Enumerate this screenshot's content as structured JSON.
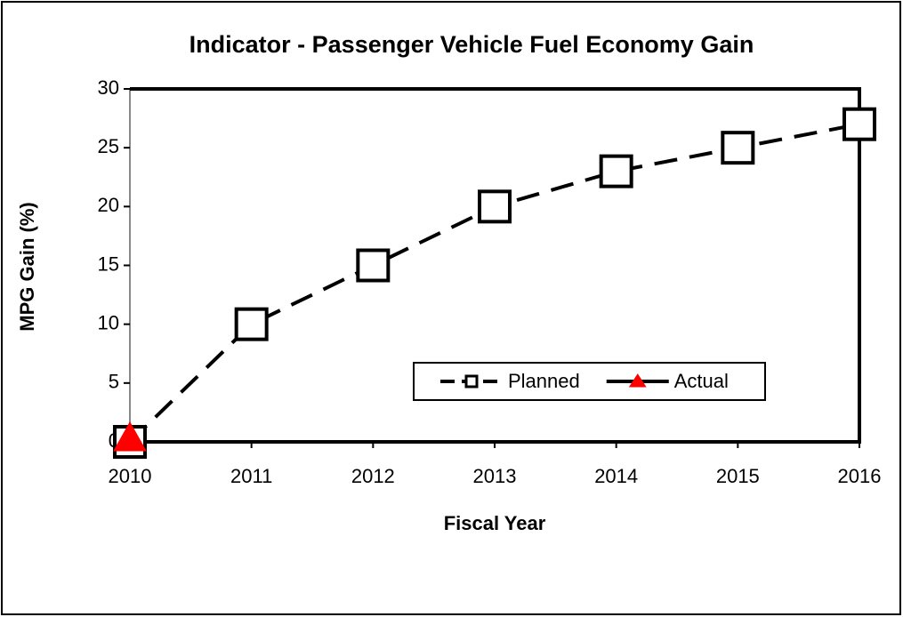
{
  "chart_data": {
    "type": "line",
    "title": "Indicator - Passenger Vehicle Fuel Economy Gain",
    "x_label": "Fiscal Year",
    "y_label": "MPG Gain (%)",
    "x": [
      2010,
      2011,
      2012,
      2013,
      2014,
      2015,
      2016
    ],
    "xlim": [
      2010,
      2016
    ],
    "xticks": [
      2010,
      2011,
      2012,
      2013,
      2014,
      2015,
      2016
    ],
    "ylim": [
      0,
      30
    ],
    "yticks": [
      0,
      5,
      10,
      15,
      20,
      25,
      30
    ],
    "grid": false,
    "legend": "lower right",
    "series": [
      {
        "name": "Planned",
        "color": "#000000",
        "dash": "dashed",
        "marker": "square",
        "marker_color": "#ffffff",
        "values": [
          0,
          10,
          15,
          20,
          23,
          25,
          27
        ]
      },
      {
        "name": "Actual",
        "color": "#000000",
        "dash": "solid",
        "marker": "triangle",
        "marker_color": "#ff0000",
        "values": [
          0,
          null,
          null,
          null,
          null,
          null,
          null
        ]
      }
    ]
  }
}
